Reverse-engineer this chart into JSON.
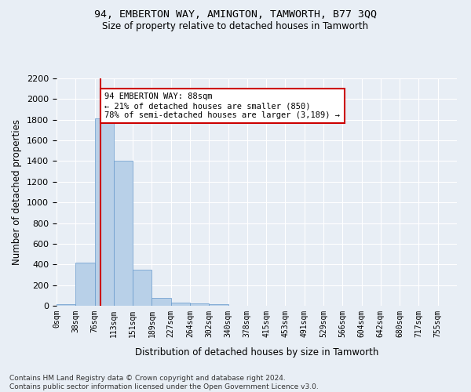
{
  "title1": "94, EMBERTON WAY, AMINGTON, TAMWORTH, B77 3QQ",
  "title2": "Size of property relative to detached houses in Tamworth",
  "xlabel": "Distribution of detached houses by size in Tamworth",
  "ylabel": "Number of detached properties",
  "bar_labels": [
    "0sqm",
    "38sqm",
    "76sqm",
    "113sqm",
    "151sqm",
    "189sqm",
    "227sqm",
    "264sqm",
    "302sqm",
    "340sqm",
    "378sqm",
    "415sqm",
    "453sqm",
    "491sqm",
    "529sqm",
    "566sqm",
    "604sqm",
    "642sqm",
    "680sqm",
    "717sqm",
    "755sqm"
  ],
  "bar_values": [
    15,
    420,
    1810,
    1400,
    350,
    75,
    30,
    20,
    15,
    0,
    0,
    0,
    0,
    0,
    0,
    0,
    0,
    0,
    0,
    0,
    0
  ],
  "bar_color": "#b8d0e8",
  "bar_edge_color": "#6699cc",
  "property_sqm": 88,
  "annotation_text": "94 EMBERTON WAY: 88sqm\n← 21% of detached houses are smaller (850)\n78% of semi-detached houses are larger (3,189) →",
  "annotation_box_color": "#ffffff",
  "annotation_border_color": "#cc0000",
  "vline_color": "#cc0000",
  "ylim": [
    0,
    2200
  ],
  "yticks": [
    0,
    200,
    400,
    600,
    800,
    1000,
    1200,
    1400,
    1600,
    1800,
    2000,
    2200
  ],
  "bg_color": "#e8eef5",
  "grid_color": "#ffffff",
  "footnote": "Contains HM Land Registry data © Crown copyright and database right 2024.\nContains public sector information licensed under the Open Government Licence v3.0.",
  "bin_width": 38
}
